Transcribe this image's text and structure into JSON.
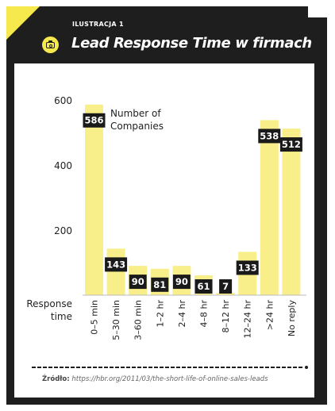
{
  "header": {
    "label": "ILUSTRACJA 1",
    "title": "Lead Response Time w firmach",
    "icon": "camera-icon"
  },
  "source": {
    "label": "Źródło:",
    "url": "https://hbr.org/2011/03/the-short-life-of-online-sales-leads"
  },
  "colors": {
    "frame": "#1e1e1e",
    "accent": "#f6e94e",
    "bar": "#f8ef8a",
    "label_bg": "#1a1a1a",
    "label_text": "#ffffff"
  },
  "chart_data": {
    "type": "bar",
    "categories": [
      "0–5 min",
      "5–30 min",
      "3–60 min",
      "1–2 hr",
      "2–4 hr",
      "4–8 hr",
      "8–12 hr",
      "12–24 hr",
      ">24 hr",
      "No reply"
    ],
    "values": [
      586,
      143,
      90,
      81,
      90,
      61,
      7,
      133,
      538,
      512
    ],
    "series_name": "Number of Companies",
    "xlabel": "Response time",
    "ylabel": "",
    "yticks": [
      200,
      400,
      600
    ],
    "ylim": [
      0,
      600
    ],
    "grid": false
  }
}
